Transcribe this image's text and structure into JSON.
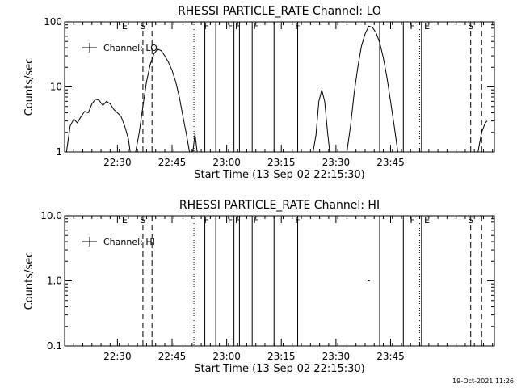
{
  "footer": {
    "timestamp": "19-Oct-2021 11:26"
  },
  "marker_lines": [
    {
      "t": 21.5,
      "style": "dash"
    },
    {
      "t": 24.0,
      "style": "dash"
    },
    {
      "t": 35.5,
      "style": "dot"
    },
    {
      "t": 38.5,
      "style": "solid"
    },
    {
      "t": 41.5,
      "style": "solid"
    },
    {
      "t": 46.5,
      "style": "solid"
    },
    {
      "t": 48.0,
      "style": "solid"
    },
    {
      "t": 51.5,
      "style": "solid"
    },
    {
      "t": 57.5,
      "style": "solid"
    },
    {
      "t": 64.0,
      "style": "solid"
    },
    {
      "t": 86.5,
      "style": "solid"
    },
    {
      "t": 93.0,
      "style": "solid"
    },
    {
      "t": 97.5,
      "style": "dot"
    },
    {
      "t": 98.0,
      "style": "solid"
    },
    {
      "t": 111.5,
      "style": "dash"
    },
    {
      "t": 114.5,
      "style": "dash"
    }
  ],
  "marker_labels": [
    {
      "t": 16.5,
      "text": "E"
    },
    {
      "t": 21.5,
      "text": "S"
    },
    {
      "t": 39.0,
      "text": "F"
    },
    {
      "t": 45.5,
      "text": "F"
    },
    {
      "t": 47.5,
      "text": "F"
    },
    {
      "t": 52.5,
      "text": "F"
    },
    {
      "t": 64.0,
      "text": "F"
    },
    {
      "t": 95.5,
      "text": "F"
    },
    {
      "t": 99.5,
      "text": "E"
    },
    {
      "t": 111.5,
      "text": "S"
    }
  ],
  "chart_data": [
    {
      "type": "line",
      "title": "RHESSI PARTICLE_RATE Channel: LO",
      "xlabel": "Start Time (13-Sep-02 22:15:30)",
      "ylabel": "Counts/sec",
      "x_unit": "minutes after 22:15:30",
      "xlim": [
        0,
        118
      ],
      "ylim": [
        1,
        100
      ],
      "yscale": "log",
      "x_ticks": [
        {
          "t": 14.5,
          "label": "22:30"
        },
        {
          "t": 29.5,
          "label": "22:45"
        },
        {
          "t": 44.5,
          "label": "23:00"
        },
        {
          "t": 59.5,
          "label": "23:15"
        },
        {
          "t": 74.5,
          "label": "23:30"
        },
        {
          "t": 89.5,
          "label": "23:45"
        }
      ],
      "y_ticks": [
        {
          "v": 1,
          "label": "1"
        },
        {
          "v": 10,
          "label": "10"
        },
        {
          "v": 100,
          "label": "100"
        }
      ],
      "legend": "Channel: LO",
      "series": [
        {
          "segments": [
            [
              [
                0.5,
                1.0
              ],
              [
                1.5,
                2.5
              ],
              [
                2.5,
                3.2
              ],
              [
                3.5,
                2.8
              ],
              [
                4.5,
                3.5
              ],
              [
                5.5,
                4.2
              ],
              [
                6.5,
                4.0
              ],
              [
                7.5,
                5.5
              ],
              [
                8.5,
                6.5
              ],
              [
                9.5,
                6.2
              ],
              [
                10.5,
                5.2
              ],
              [
                11.5,
                6.0
              ],
              [
                12.5,
                5.5
              ],
              [
                13.5,
                4.5
              ],
              [
                14.5,
                4.0
              ],
              [
                15.5,
                3.5
              ],
              [
                16.5,
                2.5
              ],
              [
                17.5,
                1.6
              ],
              [
                18.0,
                1.0
              ]
            ],
            [
              [
                19.5,
                1.0
              ],
              [
                20.5,
                2.0
              ],
              [
                21.5,
                5.0
              ],
              [
                22.5,
                12.0
              ],
              [
                23.5,
                22.0
              ],
              [
                24.5,
                32.0
              ],
              [
                25.5,
                38.0
              ],
              [
                26.5,
                36.0
              ],
              [
                27.5,
                30.0
              ],
              [
                28.5,
                24.0
              ],
              [
                29.5,
                18.0
              ],
              [
                30.5,
                12.0
              ],
              [
                31.5,
                7.0
              ],
              [
                32.5,
                3.5
              ],
              [
                33.5,
                1.8
              ],
              [
                34.3,
                1.0
              ]
            ],
            [
              [
                35.2,
                1.0
              ],
              [
                35.8,
                1.9
              ],
              [
                36.4,
                1.0
              ]
            ],
            [
              [
                68.2,
                1.0
              ],
              [
                69.0,
                1.8
              ],
              [
                69.8,
                6.0
              ],
              [
                70.6,
                9.0
              ],
              [
                71.4,
                6.0
              ],
              [
                72.2,
                2.0
              ],
              [
                72.8,
                1.0
              ]
            ],
            [
              [
                77.5,
                1.0
              ],
              [
                78.5,
                2.5
              ],
              [
                79.5,
                8.0
              ],
              [
                80.5,
                20.0
              ],
              [
                81.5,
                42.0
              ],
              [
                82.5,
                65.0
              ],
              [
                83.5,
                86.0
              ],
              [
                84.5,
                82.0
              ],
              [
                85.5,
                68.0
              ],
              [
                86.5,
                48.0
              ],
              [
                87.5,
                28.0
              ],
              [
                88.5,
                14.0
              ],
              [
                89.5,
                6.0
              ],
              [
                90.5,
                2.5
              ],
              [
                91.5,
                1.0
              ]
            ],
            [
              [
                113.5,
                1.0
              ],
              [
                114.5,
                2.0
              ],
              [
                115.5,
                2.8
              ],
              [
                116.0,
                3.0
              ]
            ]
          ]
        }
      ]
    },
    {
      "type": "line",
      "title": "RHESSI PARTICLE_RATE Channel: HI",
      "xlabel": "Start Time (13-Sep-02 22:15:30)",
      "ylabel": "Counts/sec",
      "x_unit": "minutes after 22:15:30",
      "xlim": [
        0,
        118
      ],
      "ylim": [
        0.1,
        10.0
      ],
      "yscale": "log",
      "x_ticks": [
        {
          "t": 14.5,
          "label": "22:30"
        },
        {
          "t": 29.5,
          "label": "22:45"
        },
        {
          "t": 44.5,
          "label": "23:00"
        },
        {
          "t": 59.5,
          "label": "23:15"
        },
        {
          "t": 74.5,
          "label": "23:30"
        },
        {
          "t": 89.5,
          "label": "23:45"
        }
      ],
      "y_ticks": [
        {
          "v": 0.1,
          "label": "0.1"
        },
        {
          "v": 1.0,
          "label": "1.0"
        },
        {
          "v": 10.0,
          "label": "10.0"
        }
      ],
      "legend": "Channel: HI",
      "series": [
        {
          "segments": [
            [
              [
                83.2,
                1.0
              ],
              [
                83.8,
                1.0
              ]
            ]
          ]
        }
      ]
    }
  ]
}
